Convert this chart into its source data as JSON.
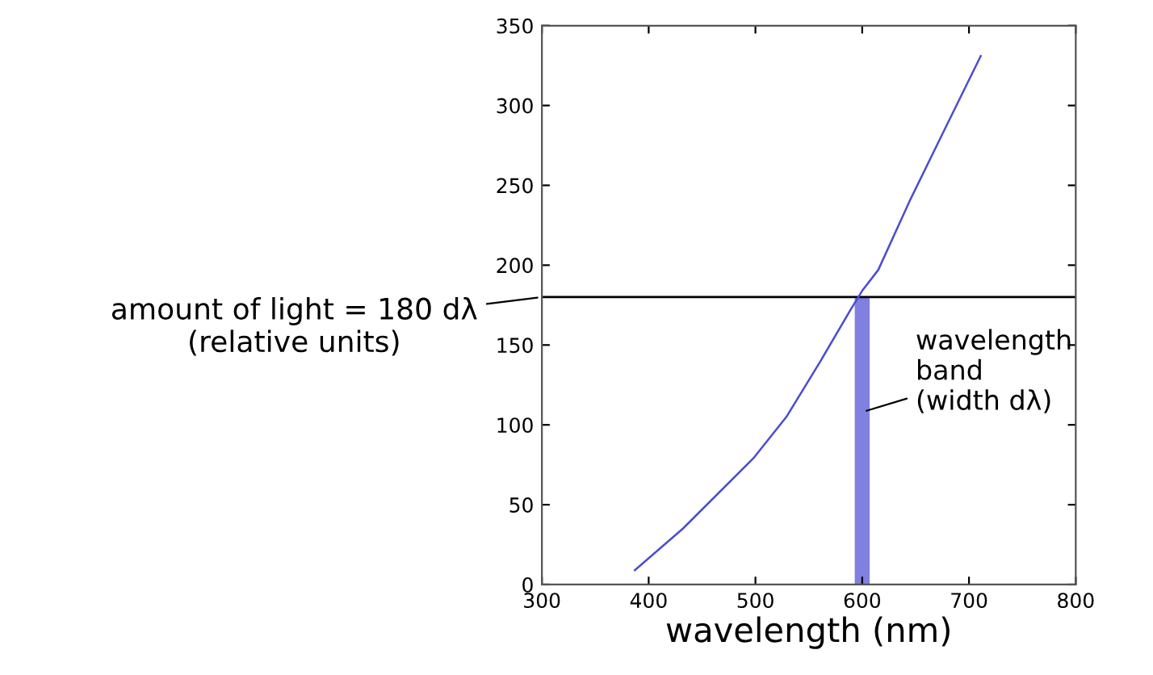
{
  "chart_data": {
    "type": "line",
    "xlabel": "wavelength (nm)",
    "x": [
      387,
      432,
      498,
      529,
      561,
      589,
      600,
      615,
      645,
      675,
      711
    ],
    "series": [
      {
        "color": "#4c4cd0",
        "values": [
          9,
          35,
          79,
          105,
          140,
          172,
          184,
          197,
          241,
          282,
          331
        ]
      }
    ],
    "xlim": [
      300,
      800
    ],
    "xticks": [
      300,
      400,
      500,
      600,
      700,
      800
    ],
    "ylim": [
      0,
      350
    ],
    "yticks": [
      0,
      50,
      100,
      150,
      200,
      250,
      300,
      350
    ],
    "grid": false,
    "marker": "none",
    "line_style": "solid",
    "ref_lines": [
      {
        "axis": "y",
        "value": 180,
        "label": "amount of light = 180 dλ\n(relative units)",
        "color": "#000000"
      }
    ],
    "bands": [
      {
        "axis": "x",
        "from": 593,
        "to": 607,
        "label": "wavelength\nband\n(width dλ)",
        "color": "#8080e0"
      }
    ]
  }
}
